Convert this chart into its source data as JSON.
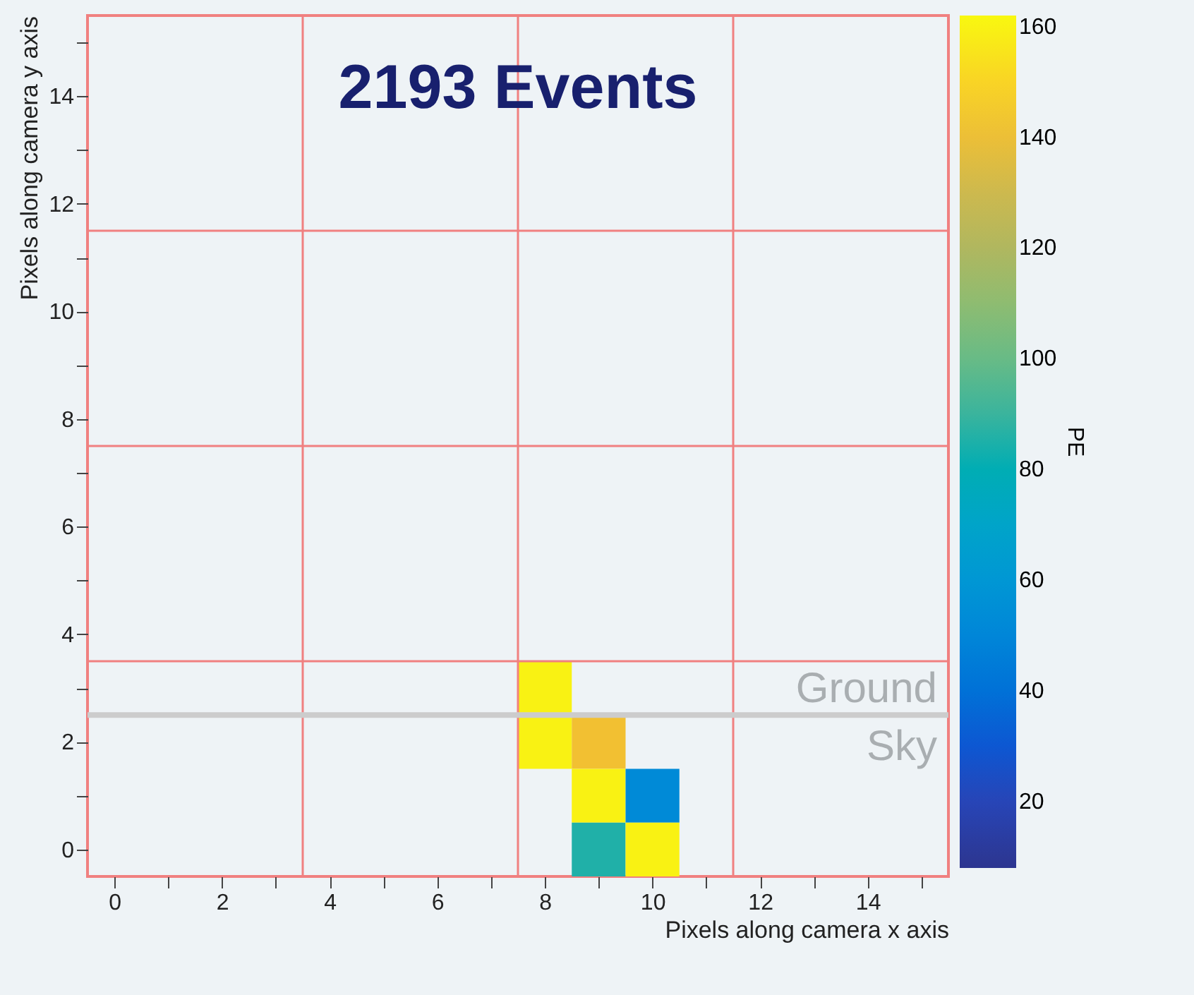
{
  "chart_data": {
    "type": "heatmap",
    "title": "2193 Events",
    "xlabel": "Pixels along camera x axis",
    "ylabel": "Pixels along camera y axis",
    "clabel": "PE",
    "x": [
      8,
      9,
      10
    ],
    "y": [
      3,
      2,
      1,
      0
    ],
    "xlim": [
      -0.5,
      15.5
    ],
    "ylim": [
      -0.5,
      15.5
    ],
    "xticks": [
      0,
      {
        "value": 1,
        "label": null
      },
      2,
      {
        "value": 3,
        "label": null
      },
      4,
      {
        "value": 5,
        "label": null
      },
      6,
      {
        "value": 7,
        "label": null
      },
      8,
      {
        "value": 9,
        "label": null
      },
      10,
      {
        "value": 11,
        "label": null
      },
      12,
      {
        "value": 13,
        "label": null
      },
      14,
      {
        "value": 15,
        "label": null
      }
    ],
    "yticks": [
      0,
      {
        "value": 1,
        "label": null
      },
      2,
      {
        "value": 3,
        "label": null
      },
      4,
      {
        "value": 5,
        "label": null
      },
      6,
      {
        "value": 7,
        "label": null
      },
      8,
      {
        "value": 9,
        "label": null
      },
      10,
      {
        "value": 11,
        "label": null
      },
      12,
      {
        "value": 13,
        "label": null
      },
      14,
      {
        "value": 15,
        "label": null
      }
    ],
    "cells": [
      [
        160,
        null,
        null
      ],
      [
        160,
        142,
        null
      ],
      [
        null,
        160,
        52
      ],
      [
        null,
        85,
        160
      ]
    ],
    "clim": [
      8,
      162
    ],
    "cticks": [
      20,
      40,
      60,
      80,
      100,
      120,
      140,
      160
    ],
    "ref_lines": [
      {
        "axis": "x",
        "value": 3.5,
        "color": "#f08080"
      },
      {
        "axis": "x",
        "value": 7.5,
        "color": "#f08080"
      },
      {
        "axis": "x",
        "value": 11.5,
        "color": "#f08080"
      },
      {
        "axis": "y",
        "value": 3.5,
        "color": "#f08080"
      },
      {
        "axis": "y",
        "value": 7.5,
        "color": "#f08080"
      },
      {
        "axis": "y",
        "value": 11.5,
        "color": "#f08080"
      },
      {
        "axis": "y",
        "value": 2.5,
        "color": "#cccccc",
        "label": "Ground"
      }
    ],
    "annotations": [
      "Sky"
    ]
  }
}
